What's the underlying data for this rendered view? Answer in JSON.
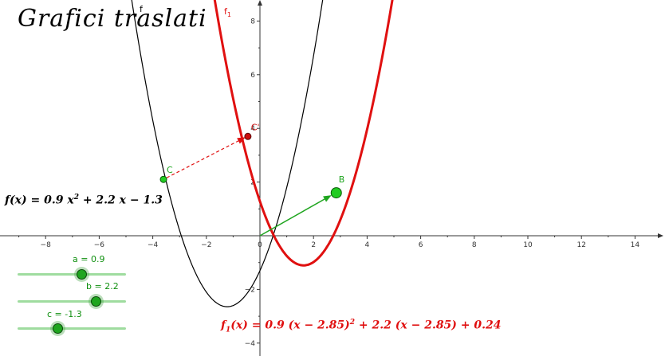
{
  "title": "Grafici traslati",
  "formula_f": {
    "lhs": "f(x) = 0.9 x",
    "exp": "2",
    "rhs": " + 2.2 x − 1.3"
  },
  "formula_f1": {
    "lhs": "f",
    "sub": "1",
    "mid": "(x) = 0.9 (x − 2.85)",
    "exp": "2",
    "rhs": " + 2.2 (x − 2.85) + 0.24"
  },
  "curve_labels": {
    "f": "f",
    "f1": "f",
    "f1_sub": "1"
  },
  "points": {
    "C": {
      "label": "C",
      "x": -3.6,
      "y": 2.1
    },
    "C_prime": {
      "label": "C'",
      "x": -0.45,
      "y": 3.7
    },
    "B": {
      "label": "B",
      "x": 2.85,
      "y": 1.6
    }
  },
  "axes": {
    "x_ticks": [
      -8,
      -6,
      -4,
      -2,
      0,
      2,
      4,
      6,
      8,
      10,
      12,
      14
    ],
    "y_ticks": [
      -4,
      -2,
      2,
      4,
      6,
      8
    ]
  },
  "sliders": [
    {
      "name": "a",
      "label": "a = 0.9",
      "value": 0.9,
      "min": -5,
      "max": 5
    },
    {
      "name": "b",
      "label": "b = 2.2",
      "value": 2.2,
      "min": -5,
      "max": 5
    },
    {
      "name": "c",
      "label": "c = -1.3",
      "value": -1.3,
      "min": -5,
      "max": 5
    }
  ],
  "colors": {
    "f": "#000000",
    "f1": "#e01010",
    "translation_vector": "#1fa51f",
    "dashed_vector": "#e01010",
    "point_green": "#22cc22",
    "point_red": "#cc1010"
  }
}
